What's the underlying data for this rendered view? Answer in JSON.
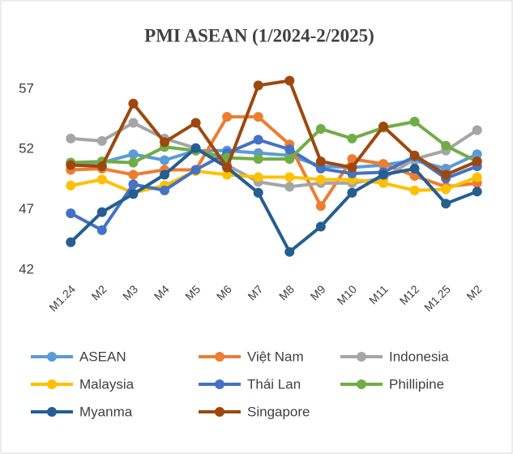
{
  "chart_data": {
    "type": "line",
    "title": "PMI ASEAN (1/2024-2/2025)",
    "categories": [
      "M1.24",
      "M2",
      "M3",
      "M4",
      "M5",
      "M6",
      "M7",
      "M8",
      "M9",
      "M10",
      "M11",
      "M12",
      "M1.25",
      "M2"
    ],
    "ylim": [
      42,
      58
    ],
    "yticks": [
      42,
      47,
      52,
      57
    ],
    "grid": false,
    "legend": "bottom",
    "series": [
      {
        "name": "ASEAN",
        "color": "#5b9bd5",
        "values": [
          50.9,
          50.9,
          51.6,
          51.1,
          51.9,
          51.9,
          51.7,
          51.5,
          50.6,
          50.5,
          50.7,
          51.1,
          50.4,
          51.6
        ]
      },
      {
        "name": "Việt Nam",
        "color": "#ed7d31",
        "values": [
          50.3,
          50.4,
          49.9,
          50.3,
          50.3,
          54.7,
          54.7,
          52.4,
          47.3,
          51.2,
          50.8,
          49.8,
          48.9,
          49.2
        ]
      },
      {
        "name": "Indonesia",
        "color": "#a5a5a5",
        "values": [
          52.9,
          52.7,
          54.2,
          52.9,
          52.1,
          50.7,
          49.3,
          48.9,
          49.2,
          49.2,
          49.6,
          51.2,
          51.9,
          53.6
        ]
      },
      {
        "name": "Malaysia",
        "color": "#ffc000",
        "values": [
          49.0,
          49.5,
          48.4,
          49.0,
          50.2,
          49.9,
          49.7,
          49.7,
          49.5,
          49.5,
          49.2,
          48.6,
          48.7,
          49.7
        ]
      },
      {
        "name": "Thái Lan",
        "color": "#4472c4",
        "values": [
          46.7,
          45.3,
          49.1,
          48.6,
          50.3,
          51.7,
          52.8,
          52.0,
          50.4,
          50.0,
          50.1,
          51.4,
          49.6,
          50.6
        ]
      },
      {
        "name": "Phillipine",
        "color": "#70ad47",
        "values": [
          50.9,
          51.0,
          50.9,
          52.2,
          51.9,
          51.3,
          51.2,
          51.2,
          53.7,
          52.9,
          53.8,
          54.3,
          52.3,
          51.0
        ]
      },
      {
        "name": "Myanma",
        "color": "#255e91",
        "values": [
          44.3,
          46.8,
          48.3,
          49.9,
          52.1,
          50.5,
          48.4,
          43.5,
          45.6,
          48.4,
          49.9,
          50.4,
          47.5,
          48.5
        ]
      },
      {
        "name": "Singapore",
        "color": "#9e480e",
        "values": [
          50.7,
          50.6,
          55.8,
          52.6,
          54.2,
          50.5,
          57.3,
          57.7,
          51.0,
          50.5,
          53.9,
          51.5,
          49.9,
          51.0
        ]
      }
    ]
  }
}
